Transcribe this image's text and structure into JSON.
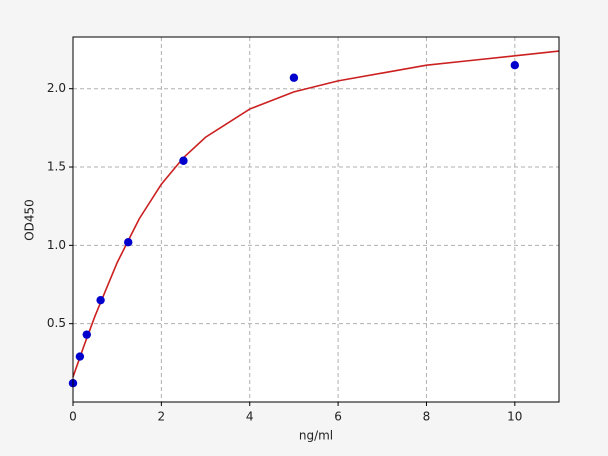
{
  "chart_data": {
    "type": "scatter",
    "x_label": "ng/ml",
    "y_label": "OD450",
    "xlim": [
      0,
      11
    ],
    "ylim": [
      0,
      2.33
    ],
    "xticks": [
      0,
      2,
      4,
      6,
      8,
      10
    ],
    "yticks": [
      0.5,
      {
        "value": 1,
        "label": "1.0"
      },
      1.5,
      {
        "value": 2,
        "label": "2.0"
      }
    ],
    "grid": true,
    "series": [
      {
        "kind": "line",
        "color": "#cc2020",
        "x": [
          0,
          0.25,
          0.5,
          1,
          1.5,
          2,
          2.5,
          3,
          4,
          5,
          6,
          7,
          8,
          9,
          10,
          11
        ],
        "values": [
          0.16,
          0.36,
          0.55,
          0.89,
          1.17,
          1.39,
          1.56,
          1.69,
          1.87,
          1.98,
          2.05,
          2.1,
          2.15,
          2.18,
          2.21,
          2.24
        ]
      },
      {
        "kind": "points",
        "color": "#0000cc",
        "x": [
          0,
          0.156,
          0.312,
          0.625,
          1.25,
          2.5,
          5,
          10
        ],
        "values": [
          0.12,
          0.29,
          0.43,
          0.65,
          1.02,
          1.54,
          2.07,
          2.15
        ]
      }
    ]
  }
}
